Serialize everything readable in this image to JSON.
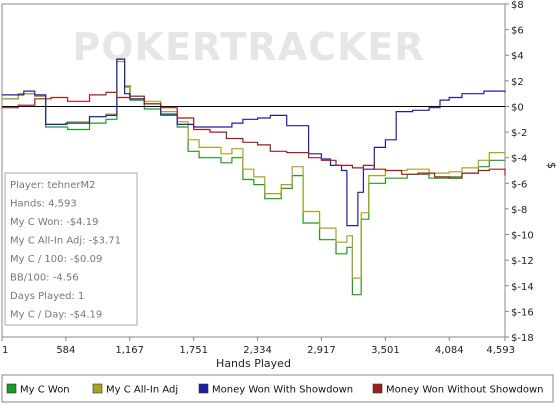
{
  "watermark": "POKERTRACKER",
  "stats": [
    "Player: tehnerM2",
    "Hands: 4,593",
    "My C Won: -$4.19",
    "My C All-In Adj: -$3.71",
    "My C / 100: -$0.09",
    "BB/100: -4.56",
    "Days Played: 1",
    "My C / Day: -$4.19"
  ],
  "colors": {
    "my_c_won": "#1e9a1e",
    "my_c_allin_adj": "#a5a51e",
    "money_won_with_showdown": "#1e1ea5",
    "money_won_without_showdown": "#a01e1e"
  },
  "chart_data": {
    "type": "line",
    "xlabel": "Hands Played",
    "ylabel": "$",
    "xlim": [
      1,
      4593
    ],
    "ylim": [
      -18,
      8
    ],
    "x_ticks": [
      1,
      584,
      1167,
      1751,
      2334,
      2917,
      3501,
      4084,
      4593
    ],
    "x_tick_labels": [
      "1",
      "584",
      "1,167",
      "1,751",
      "2,334",
      "2,917",
      "3,501",
      "4,084",
      "4,593"
    ],
    "y_ticks": [
      8,
      6,
      4,
      2,
      0,
      -2,
      -4,
      -6,
      -8,
      -10,
      -12,
      -14,
      -16,
      -18
    ],
    "y_tick_labels": [
      "$8",
      "$6",
      "$4",
      "$2",
      "$0",
      "$-2",
      "$-4",
      "$-6",
      "$-8",
      "$-10",
      "$-12",
      "$-14",
      "$-16",
      "$-18"
    ],
    "grid": false,
    "legend_position": "bottom",
    "series": [
      {
        "name": "My C Won",
        "color_key": "my_c_won",
        "points": [
          [
            1,
            0.6
          ],
          [
            150,
            1.0
          ],
          [
            300,
            0.8
          ],
          [
            400,
            -1.6
          ],
          [
            600,
            -1.8
          ],
          [
            800,
            -1.3
          ],
          [
            950,
            -1.0
          ],
          [
            1050,
            3.7
          ],
          [
            1120,
            1.6
          ],
          [
            1170,
            0.5
          ],
          [
            1300,
            -0.2
          ],
          [
            1450,
            -0.7
          ],
          [
            1600,
            -1.6
          ],
          [
            1700,
            -3.5
          ],
          [
            1800,
            -4.0
          ],
          [
            2000,
            -4.4
          ],
          [
            2100,
            -4.0
          ],
          [
            2200,
            -5.7
          ],
          [
            2300,
            -6.1
          ],
          [
            2400,
            -7.2
          ],
          [
            2550,
            -6.4
          ],
          [
            2650,
            -5.4
          ],
          [
            2750,
            -9.1
          ],
          [
            2900,
            -10.4
          ],
          [
            3050,
            -11.5
          ],
          [
            3150,
            -11.0
          ],
          [
            3200,
            -14.7
          ],
          [
            3280,
            -8.8
          ],
          [
            3350,
            -6.0
          ],
          [
            3501,
            -5.6
          ],
          [
            3700,
            -5.3
          ],
          [
            3900,
            -5.6
          ],
          [
            4084,
            -5.5
          ],
          [
            4200,
            -5.2
          ],
          [
            4350,
            -4.7
          ],
          [
            4450,
            -4.2
          ],
          [
            4593,
            -4.2
          ]
        ]
      },
      {
        "name": "My C All-In Adj",
        "color_key": "my_c_allin_adj",
        "points": [
          [
            1,
            0.6
          ],
          [
            150,
            1.0
          ],
          [
            300,
            0.8
          ],
          [
            400,
            -1.4
          ],
          [
            600,
            -1.2
          ],
          [
            800,
            -0.8
          ],
          [
            950,
            -0.6
          ],
          [
            1050,
            3.5
          ],
          [
            1120,
            1.5
          ],
          [
            1167,
            0.8
          ],
          [
            1300,
            0.4
          ],
          [
            1450,
            -0.4
          ],
          [
            1600,
            -1.2
          ],
          [
            1700,
            -2.6
          ],
          [
            1800,
            -3.2
          ],
          [
            2000,
            -3.7
          ],
          [
            2100,
            -3.3
          ],
          [
            2200,
            -4.9
          ],
          [
            2300,
            -5.5
          ],
          [
            2400,
            -6.8
          ],
          [
            2550,
            -6.1
          ],
          [
            2650,
            -4.7
          ],
          [
            2750,
            -8.2
          ],
          [
            2900,
            -9.5
          ],
          [
            3050,
            -10.6
          ],
          [
            3150,
            -10.1
          ],
          [
            3200,
            -13.4
          ],
          [
            3280,
            -8.3
          ],
          [
            3350,
            -5.4
          ],
          [
            3501,
            -5.0
          ],
          [
            3700,
            -4.9
          ],
          [
            3900,
            -5.2
          ],
          [
            4084,
            -5.1
          ],
          [
            4200,
            -4.8
          ],
          [
            4350,
            -4.2
          ],
          [
            4450,
            -3.6
          ],
          [
            4593,
            -3.7
          ]
        ]
      },
      {
        "name": "Money Won With Showdown",
        "color_key": "money_won_with_showdown",
        "points": [
          [
            1,
            0.9
          ],
          [
            200,
            1.2
          ],
          [
            300,
            0.9
          ],
          [
            400,
            -1.4
          ],
          [
            584,
            -1.3
          ],
          [
            800,
            -0.8
          ],
          [
            950,
            -0.7
          ],
          [
            1050,
            3.7
          ],
          [
            1120,
            1.0
          ],
          [
            1167,
            0.6
          ],
          [
            1300,
            0.2
          ],
          [
            1450,
            -0.6
          ],
          [
            1600,
            -1.4
          ],
          [
            1751,
            -1.6
          ],
          [
            2000,
            -1.6
          ],
          [
            2100,
            -1.3
          ],
          [
            2200,
            -1.0
          ],
          [
            2334,
            -0.9
          ],
          [
            2450,
            -0.7
          ],
          [
            2600,
            -1.5
          ],
          [
            2700,
            -1.5
          ],
          [
            2800,
            -3.7
          ],
          [
            2917,
            -4.1
          ],
          [
            3000,
            -4.6
          ],
          [
            3100,
            -5.0
          ],
          [
            3150,
            -9.3
          ],
          [
            3250,
            -6.7
          ],
          [
            3300,
            -4.9
          ],
          [
            3400,
            -3.2
          ],
          [
            3501,
            -2.6
          ],
          [
            3600,
            -0.4
          ],
          [
            3750,
            -0.3
          ],
          [
            3900,
            -0.1
          ],
          [
            4000,
            0.5
          ],
          [
            4084,
            0.7
          ],
          [
            4200,
            1.0
          ],
          [
            4400,
            1.2
          ],
          [
            4593,
            1.1
          ]
        ]
      },
      {
        "name": "Money Won Without Showdown",
        "color_key": "money_won_without_showdown",
        "points": [
          [
            1,
            -0.1
          ],
          [
            150,
            0.1
          ],
          [
            300,
            0.6
          ],
          [
            450,
            0.7
          ],
          [
            600,
            0.4
          ],
          [
            800,
            0.9
          ],
          [
            950,
            1.1
          ],
          [
            1050,
            0.7
          ],
          [
            1167,
            0.8
          ],
          [
            1300,
            0.2
          ],
          [
            1450,
            -0.1
          ],
          [
            1600,
            -0.9
          ],
          [
            1751,
            -1.8
          ],
          [
            1900,
            -2.0
          ],
          [
            2050,
            -2.5
          ],
          [
            2200,
            -2.8
          ],
          [
            2334,
            -3.0
          ],
          [
            2450,
            -3.5
          ],
          [
            2600,
            -3.6
          ],
          [
            2800,
            -4.0
          ],
          [
            2917,
            -4.2
          ],
          [
            3050,
            -4.6
          ],
          [
            3200,
            -4.8
          ],
          [
            3300,
            -4.6
          ],
          [
            3400,
            -4.9
          ],
          [
            3501,
            -5.0
          ],
          [
            3650,
            -5.3
          ],
          [
            3800,
            -5.2
          ],
          [
            3950,
            -5.5
          ],
          [
            4084,
            -5.6
          ],
          [
            4200,
            -5.2
          ],
          [
            4350,
            -5.0
          ],
          [
            4450,
            -4.9
          ],
          [
            4593,
            -5.4
          ]
        ]
      }
    ]
  }
}
